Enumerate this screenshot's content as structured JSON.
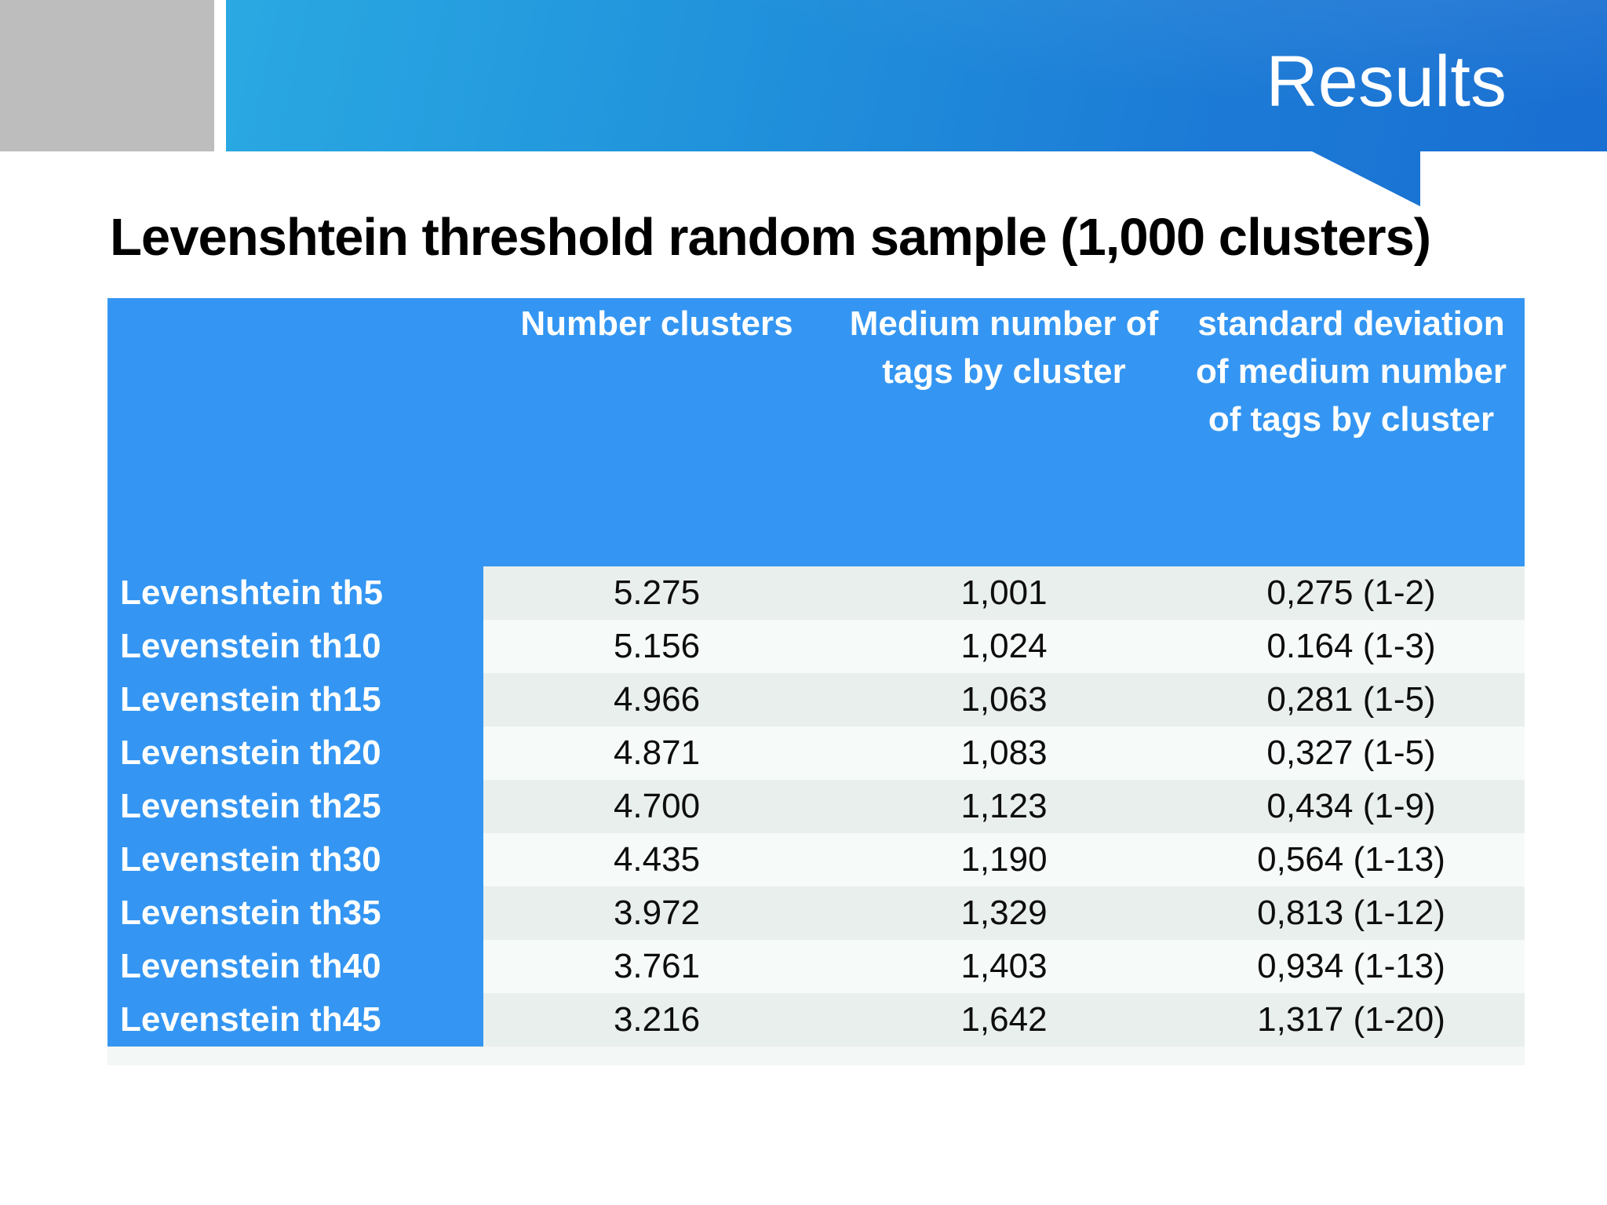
{
  "slide": {
    "title": "Results",
    "heading": "Levenshtein threshold random sample (1,000 clusters)"
  },
  "table": {
    "columns": [
      "",
      "Number clusters",
      "Medium number of tags by cluster",
      "standard deviation of medium number of tags by cluster"
    ],
    "rows": [
      {
        "label": "Levenshtein th5",
        "number_clusters": "5.275",
        "medium_tags": "1,001",
        "std_dev": "0,275 (1-2)"
      },
      {
        "label": "Levenstein th10",
        "number_clusters": "5.156",
        "medium_tags": "1,024",
        "std_dev": "0.164 (1-3)"
      },
      {
        "label": "Levenstein th15",
        "number_clusters": "4.966",
        "medium_tags": "1,063",
        "std_dev": "0,281 (1-5)"
      },
      {
        "label": "Levenstein th20",
        "number_clusters": "4.871",
        "medium_tags": "1,083",
        "std_dev": "0,327 (1-5)"
      },
      {
        "label": "Levenstein th25",
        "number_clusters": "4.700",
        "medium_tags": "1,123",
        "std_dev": "0,434 (1-9)"
      },
      {
        "label": "Levenstein th30",
        "number_clusters": "4.435",
        "medium_tags": "1,190",
        "std_dev": "0,564 (1-13)"
      },
      {
        "label": "Levenstein th35",
        "number_clusters": "3.972",
        "medium_tags": "1,329",
        "std_dev": "0,813 (1-12)"
      },
      {
        "label": "Levenstein th40",
        "number_clusters": "3.761",
        "medium_tags": "1,403",
        "std_dev": "0,934 (1-13)"
      },
      {
        "label": "Levenstein th45",
        "number_clusters": "3.216",
        "medium_tags": "1,642",
        "std_dev": "1,317 (1-20)"
      }
    ]
  },
  "colors": {
    "banner_gradient_start": "#2aa9e2",
    "banner_gradient_end": "#196ed1",
    "table_header_blue": "#3496f2",
    "row_odd_bg": "#e9efed",
    "row_even_bg": "#f6faf8",
    "bottom_band_bg": "#f3f7f5",
    "corner_gray": "#bdbdbd",
    "heading_text": "#000000",
    "banner_text": "#ffffff"
  }
}
